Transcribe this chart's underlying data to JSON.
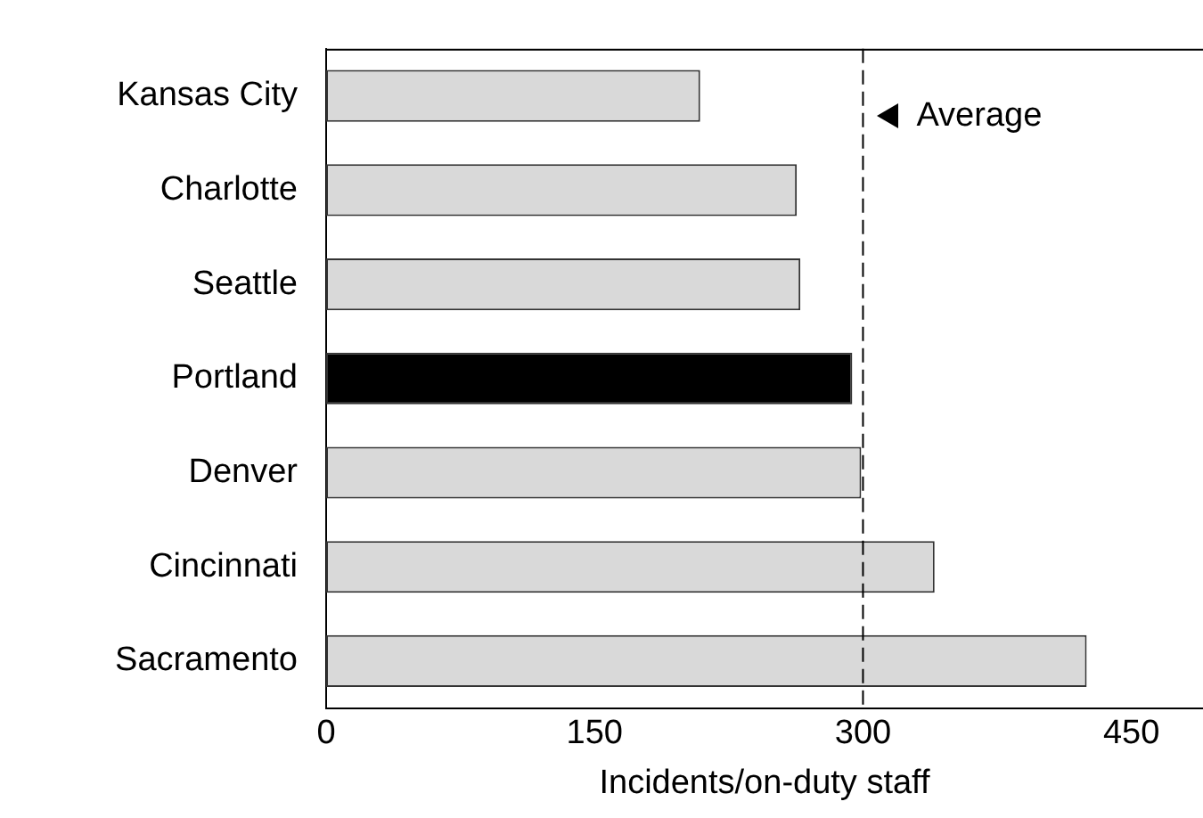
{
  "chart_data": {
    "type": "bar",
    "orientation": "horizontal",
    "categories": [
      "Kansas City",
      "Charlotte",
      "Seattle",
      "Portland",
      "Denver",
      "Cincinnati",
      "Sacramento"
    ],
    "values": [
      209,
      263,
      265,
      294,
      299,
      340,
      425
    ],
    "colors": [
      "#d9d9d9",
      "#d9d9d9",
      "#d9d9d9",
      "#000000",
      "#d9d9d9",
      "#d9d9d9",
      "#d9d9d9"
    ],
    "xlabel": "Incidents/on-duty staff",
    "xlim": [
      0,
      490
    ],
    "xticks": [
      0,
      150,
      300,
      450
    ],
    "grid": false,
    "legend": false,
    "ref_lines": [
      {
        "axis": "x",
        "value": 300,
        "label": "Average",
        "line_style": "dashed",
        "color": "#000000"
      }
    ]
  }
}
